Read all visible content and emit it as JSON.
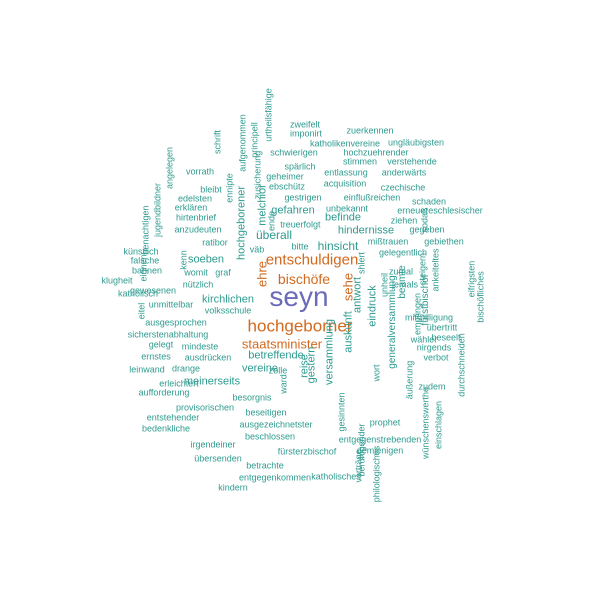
{
  "colors": {
    "primary": "#6b6bb8",
    "emphasis": "#d2691e",
    "accent": "#2e9b8f",
    "background": "#ffffff"
  },
  "words": [
    {
      "text": "seyn",
      "color": "primary"
    },
    {
      "text": "hochgeborner",
      "color": "emphasis"
    },
    {
      "text": "entschuldigen",
      "color": "emphasis"
    },
    {
      "text": "bischöfe",
      "color": "emphasis"
    },
    {
      "text": "staatsminister",
      "color": "emphasis"
    },
    {
      "text": "sehe",
      "color": "emphasis"
    },
    {
      "text": "ehre",
      "color": "emphasis"
    },
    {
      "text": "überall",
      "color": "accent"
    },
    {
      "text": "hinsicht",
      "color": "accent"
    },
    {
      "text": "kirchlichen",
      "color": "accent"
    },
    {
      "text": "betreffende",
      "color": "accent"
    },
    {
      "text": "hindernisse",
      "color": "accent"
    },
    {
      "text": "eindruck",
      "color": "accent"
    },
    {
      "text": "auskunft",
      "color": "accent"
    },
    {
      "text": "antwort",
      "color": "accent"
    },
    {
      "text": "versammlung",
      "color": "accent"
    },
    {
      "text": "gestern",
      "color": "accent"
    },
    {
      "text": "reise",
      "color": "accent"
    },
    {
      "text": "vereine",
      "color": "accent"
    },
    {
      "text": "meinerseits",
      "color": "accent"
    },
    {
      "text": "hochgeborener",
      "color": "accent"
    },
    {
      "text": "melchior",
      "color": "accent"
    },
    {
      "text": "gefahren",
      "color": "accent"
    },
    {
      "text": "befinde",
      "color": "accent"
    },
    {
      "text": "soeben",
      "color": "accent"
    },
    {
      "text": "generalversammlung",
      "color": "accent"
    },
    {
      "text": "beamte",
      "color": "accent"
    },
    {
      "text": "fürstbischof",
      "color": "accent"
    },
    {
      "text": "zweifelt",
      "color": "accent"
    },
    {
      "text": "imponirt",
      "color": "accent"
    },
    {
      "text": "zuerkennen",
      "color": "accent"
    },
    {
      "text": "katholikenvereine",
      "color": "accent"
    },
    {
      "text": "ungläubigsten",
      "color": "accent"
    },
    {
      "text": "schwierigen",
      "color": "accent"
    },
    {
      "text": "hochzuehrender",
      "color": "accent"
    },
    {
      "text": "stimmen",
      "color": "accent"
    },
    {
      "text": "verstehende",
      "color": "accent"
    },
    {
      "text": "spärlich",
      "color": "accent"
    },
    {
      "text": "entlassung",
      "color": "accent"
    },
    {
      "text": "anderwärts",
      "color": "accent"
    },
    {
      "text": "geheimer",
      "color": "accent"
    },
    {
      "text": "acquisition",
      "color": "accent"
    },
    {
      "text": "czechische",
      "color": "accent"
    },
    {
      "text": "ebschütz",
      "color": "accent"
    },
    {
      "text": "gestrigen",
      "color": "accent"
    },
    {
      "text": "einflußreichen",
      "color": "accent"
    },
    {
      "text": "schaden",
      "color": "accent"
    },
    {
      "text": "unbekannt",
      "color": "accent"
    },
    {
      "text": "erneuereschlesischer",
      "color": "accent"
    },
    {
      "text": "ziehen",
      "color": "accent"
    },
    {
      "text": "sodaß",
      "color": "accent"
    },
    {
      "text": "gegeben",
      "color": "accent"
    },
    {
      "text": "mißtrauen",
      "color": "accent"
    },
    {
      "text": "gebiethen",
      "color": "accent"
    },
    {
      "text": "gelegentlich",
      "color": "accent"
    },
    {
      "text": "zumal",
      "color": "accent"
    },
    {
      "text": "jemals",
      "color": "accent"
    },
    {
      "text": "mißbilligung",
      "color": "accent"
    },
    {
      "text": "übertritt",
      "color": "accent"
    },
    {
      "text": "beseelt",
      "color": "accent"
    },
    {
      "text": "wähler",
      "color": "accent"
    },
    {
      "text": "nirgends",
      "color": "accent"
    },
    {
      "text": "verbot",
      "color": "accent"
    },
    {
      "text": "zudem",
      "color": "accent"
    },
    {
      "text": "vorrath",
      "color": "accent"
    },
    {
      "text": "bleibt",
      "color": "accent"
    },
    {
      "text": "edelsten",
      "color": "accent"
    },
    {
      "text": "erklären",
      "color": "accent"
    },
    {
      "text": "hirtenbrief",
      "color": "accent"
    },
    {
      "text": "anzudeuten",
      "color": "accent"
    },
    {
      "text": "ratibor",
      "color": "accent"
    },
    {
      "text": "väb",
      "color": "accent"
    },
    {
      "text": "bitte",
      "color": "accent"
    },
    {
      "text": "treu",
      "color": "accent"
    },
    {
      "text": "ende",
      "color": "accent"
    },
    {
      "text": "künstlich",
      "color": "accent"
    },
    {
      "text": "falsche",
      "color": "accent"
    },
    {
      "text": "bahnen",
      "color": "accent"
    },
    {
      "text": "klugheit",
      "color": "accent"
    },
    {
      "text": "katholisch",
      "color": "accent"
    },
    {
      "text": "womit",
      "color": "accent"
    },
    {
      "text": "graf",
      "color": "accent"
    },
    {
      "text": "nützlich",
      "color": "accent"
    },
    {
      "text": "unmittelbar",
      "color": "accent"
    },
    {
      "text": "volksschule",
      "color": "accent"
    },
    {
      "text": "ausgesprochen",
      "color": "accent"
    },
    {
      "text": "sicherstenabhaltung",
      "color": "accent"
    },
    {
      "text": "mindeste",
      "color": "accent"
    },
    {
      "text": "gelegt",
      "color": "accent"
    },
    {
      "text": "ausdrücken",
      "color": "accent"
    },
    {
      "text": "ernstes",
      "color": "accent"
    },
    {
      "text": "leinwand",
      "color": "accent"
    },
    {
      "text": "drange",
      "color": "accent"
    },
    {
      "text": "zolle",
      "color": "accent"
    },
    {
      "text": "erleichtert",
      "color": "accent"
    },
    {
      "text": "aufforderung",
      "color": "accent"
    },
    {
      "text": "besorgnis",
      "color": "accent"
    },
    {
      "text": "provisorischen",
      "color": "accent"
    },
    {
      "text": "beseitigen",
      "color": "accent"
    },
    {
      "text": "entstehender",
      "color": "accent"
    },
    {
      "text": "ausgezeichnetster",
      "color": "accent"
    },
    {
      "text": "bedenkliche",
      "color": "accent"
    },
    {
      "text": "beschlossen",
      "color": "accent"
    },
    {
      "text": "irgendeiner",
      "color": "accent"
    },
    {
      "text": "übersenden",
      "color": "accent"
    },
    {
      "text": "fürsterzbischof",
      "color": "accent"
    },
    {
      "text": "betrachte",
      "color": "accent"
    },
    {
      "text": "entgegenkommen",
      "color": "accent"
    },
    {
      "text": "katholisches",
      "color": "accent"
    },
    {
      "text": "kindern",
      "color": "accent"
    },
    {
      "text": "entgegenstrebenden",
      "color": "accent"
    },
    {
      "text": "demjenigen",
      "color": "accent"
    },
    {
      "text": "prophet",
      "color": "accent"
    },
    {
      "text": "schrift",
      "color": "accent"
    },
    {
      "text": "aufgenommen",
      "color": "accent"
    },
    {
      "text": "principell",
      "color": "accent"
    },
    {
      "text": "urtheilsfähige",
      "color": "accent"
    },
    {
      "text": "angelegen",
      "color": "accent"
    },
    {
      "text": "jugendbildner",
      "color": "accent"
    },
    {
      "text": "benachtigen",
      "color": "accent"
    },
    {
      "text": "ennipte",
      "color": "accent"
    },
    {
      "text": "zusicherung",
      "color": "accent"
    },
    {
      "text": "eignen",
      "color": "accent"
    },
    {
      "text": "gewesenen",
      "color": "accent"
    },
    {
      "text": "eitel",
      "color": "accent"
    },
    {
      "text": "kenn",
      "color": "accent"
    },
    {
      "text": "shlert",
      "color": "accent"
    },
    {
      "text": "unheil",
      "color": "accent"
    },
    {
      "text": "wort",
      "color": "accent"
    },
    {
      "text": "äußerung",
      "color": "accent"
    },
    {
      "text": "empfingen",
      "color": "accent"
    },
    {
      "text": "steigern",
      "color": "accent"
    },
    {
      "text": "ankeiteltes",
      "color": "accent"
    },
    {
      "text": "eifrigsten",
      "color": "accent"
    },
    {
      "text": "bischöfliches",
      "color": "accent"
    },
    {
      "text": "durchschneiden",
      "color": "accent"
    },
    {
      "text": "wünschenswerthe",
      "color": "accent"
    },
    {
      "text": "einschlagen",
      "color": "accent"
    },
    {
      "text": "beruhigender",
      "color": "accent"
    },
    {
      "text": "vorträge",
      "color": "accent"
    },
    {
      "text": "philologisches",
      "color": "accent"
    },
    {
      "text": "gesinnten",
      "color": "accent"
    },
    {
      "text": "ward",
      "color": "accent"
    },
    {
      "text": "erfolgt",
      "color": "accent"
    },
    {
      "text": "am",
      "color": "accent"
    }
  ]
}
